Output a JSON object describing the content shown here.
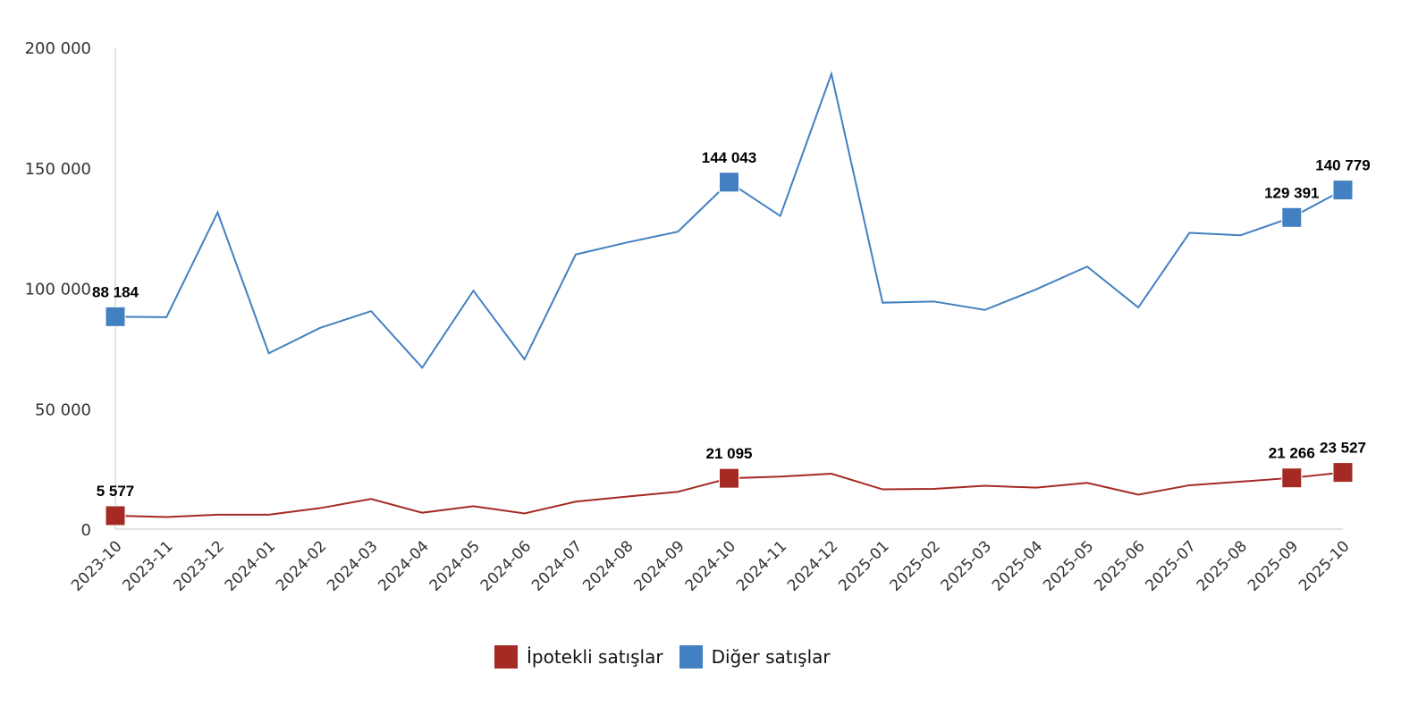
{
  "chart_data": {
    "type": "line",
    "title": "",
    "xlabel": "",
    "ylabel": "",
    "ylim": [
      0,
      200000
    ],
    "yticks": [
      0,
      50000,
      100000,
      150000,
      200000
    ],
    "ytick_labels": [
      "0",
      "50 000",
      "100 000",
      "150 000",
      "200 000"
    ],
    "grid": false,
    "legend_position": "bottom",
    "categories": [
      "2023-10",
      "2023-11",
      "2023-12",
      "2024-01",
      "2024-02",
      "2024-03",
      "2024-04",
      "2024-05",
      "2024-06",
      "2024-07",
      "2024-08",
      "2024-09",
      "2024-10",
      "2024-11",
      "2024-12",
      "2025-01",
      "2025-02",
      "2025-03",
      "2025-04",
      "2025-05",
      "2025-06",
      "2025-07",
      "2025-08",
      "2025-09",
      "2025-10"
    ],
    "series": [
      {
        "name": "İpotekli satışlar",
        "color": "#a52a23",
        "values": [
          5577,
          5000,
          6000,
          6000,
          8700,
          12500,
          6800,
          9500,
          6500,
          11400,
          13500,
          15500,
          21095,
          21800,
          23000,
          16500,
          16700,
          18000,
          17200,
          19200,
          14300,
          18200,
          19700,
          21266,
          23527
        ],
        "labeled_points": {
          "0": "5 577",
          "12": "21 095",
          "23": "21 266",
          "24": "23 527"
        }
      },
      {
        "name": "Diğer satışlar",
        "color": "#4380c1",
        "values": [
          88184,
          88000,
          131500,
          73000,
          83500,
          90500,
          67000,
          99000,
          70500,
          114000,
          119000,
          123500,
          144043,
          130000,
          189000,
          94000,
          94500,
          91000,
          99500,
          109000,
          92000,
          123000,
          122000,
          129391,
          140779
        ],
        "labeled_points": {
          "0": "88 184",
          "12": "144 043",
          "23": "129 391",
          "24": "140 779"
        }
      }
    ]
  },
  "legend": {
    "items": [
      {
        "label": "İpotekli satışlar",
        "color": "#a52a23"
      },
      {
        "label": "Diğer satışlar",
        "color": "#4380c1"
      }
    ]
  }
}
